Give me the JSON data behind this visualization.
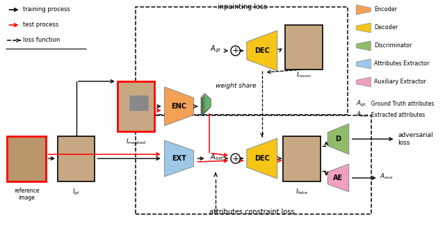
{
  "bg_color": "#ffffff",
  "enc_color": "#F4A055",
  "dec_color": "#F5C518",
  "disc_color": "#8FBC6A",
  "ext_color": "#9EC8E8",
  "aux_color": "#F0A0C0",
  "feat_colors": [
    "#4a7a4a",
    "#5a9a5a",
    "#6ab06a"
  ],
  "legend_items": [
    {
      "label": "Encoder",
      "color": "#F4A055"
    },
    {
      "label": "Decoder",
      "color": "#F5C518"
    },
    {
      "label": "Discriminator",
      "color": "#8FBC6A"
    },
    {
      "label": "Attributes Extractor",
      "color": "#9EC8E8"
    },
    {
      "label": "Auxiliary Extractor",
      "color": "#F0A0C0"
    }
  ]
}
